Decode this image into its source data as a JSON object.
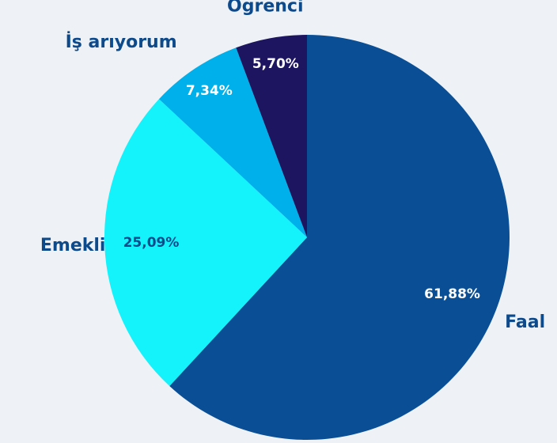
{
  "chart_data": {
    "type": "pie",
    "categories": [
      "Faal",
      "Emekli",
      "İş arıyorum",
      "Öğrenci"
    ],
    "values": [
      61.88,
      25.09,
      7.34,
      5.7
    ],
    "value_labels": [
      "61,88%",
      "25,09%",
      "7,34%",
      "5,70%"
    ],
    "colors": [
      "#0a4f96",
      "#14f2fb",
      "#00b0ea",
      "#1e1560"
    ],
    "value_label_colors": [
      "#ffffff",
      "#0d4a8c",
      "#ffffff",
      "#ffffff"
    ]
  }
}
